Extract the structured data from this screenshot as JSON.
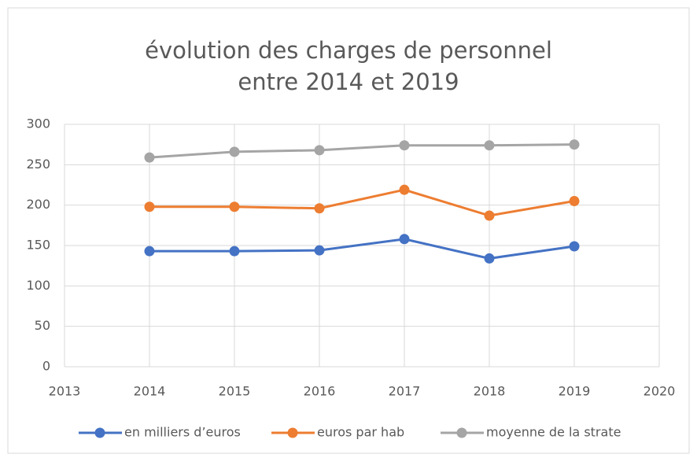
{
  "chart_data": {
    "type": "line",
    "title": [
      "évolution des charges de personnel",
      "entre 2014 et 2019"
    ],
    "x": [
      2014,
      2015,
      2016,
      2017,
      2018,
      2019
    ],
    "series": [
      {
        "name": "en milliers d’euros",
        "color": "#4472c4",
        "values": [
          143,
          143,
          144,
          158,
          134,
          149
        ]
      },
      {
        "name": "euros par hab",
        "color": "#ed7d31",
        "values": [
          198,
          198,
          196,
          219,
          187,
          205
        ]
      },
      {
        "name": "moyenne de la strate",
        "color": "#a5a5a5",
        "values": [
          259,
          266,
          268,
          274,
          274,
          275
        ]
      }
    ],
    "xlim": [
      2013,
      2020
    ],
    "xticks": [
      2013,
      2014,
      2015,
      2016,
      2017,
      2018,
      2019,
      2020
    ],
    "ylim": [
      0,
      300
    ],
    "yticks": [
      0,
      50,
      100,
      150,
      200,
      250,
      300
    ],
    "grid": true,
    "legend": "bottom"
  }
}
